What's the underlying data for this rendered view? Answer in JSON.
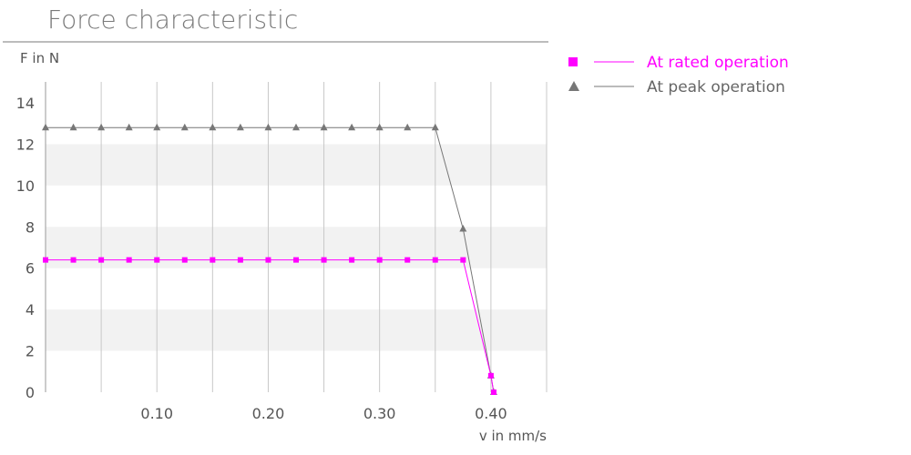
{
  "chart_data": {
    "type": "line",
    "title": "Force characteristic",
    "xlabel": "v in mm/s",
    "ylabel": "F in N",
    "xlim": [
      0,
      0.45
    ],
    "ylim": [
      0,
      14
    ],
    "x_ticks": [
      "0.10",
      "0.20",
      "0.30",
      "0.40"
    ],
    "y_ticks": [
      "0",
      "2",
      "4",
      "6",
      "8",
      "10",
      "12",
      "14"
    ],
    "grid": "vertical lines with alternating horizontal bands",
    "legend_position": "right",
    "series": [
      {
        "name": "At rated operation",
        "color": "#ff00ff",
        "marker": "square",
        "x": [
          0,
          0.025,
          0.05,
          0.075,
          0.1,
          0.125,
          0.15,
          0.175,
          0.2,
          0.225,
          0.25,
          0.275,
          0.3,
          0.325,
          0.35,
          0.375,
          0.4,
          0.4025
        ],
        "y": [
          6.4,
          6.4,
          6.4,
          6.4,
          6.4,
          6.4,
          6.4,
          6.4,
          6.4,
          6.4,
          6.4,
          6.4,
          6.4,
          6.4,
          6.4,
          6.4,
          0.8,
          0
        ]
      },
      {
        "name": "At peak operation",
        "color": "#777777",
        "marker": "triangle",
        "x": [
          0,
          0.025,
          0.05,
          0.075,
          0.1,
          0.125,
          0.15,
          0.175,
          0.2,
          0.225,
          0.25,
          0.275,
          0.3,
          0.325,
          0.35,
          0.375,
          0.4,
          0.4025
        ],
        "y": [
          12.8,
          12.8,
          12.8,
          12.8,
          12.8,
          12.8,
          12.8,
          12.8,
          12.8,
          12.8,
          12.8,
          12.8,
          12.8,
          12.8,
          12.8,
          7.9,
          0.8,
          0
        ]
      }
    ]
  }
}
